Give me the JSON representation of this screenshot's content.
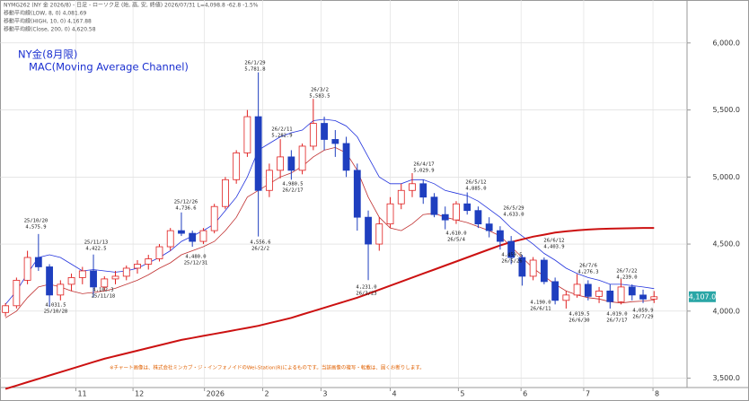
{
  "chart_data": {
    "type": "candlestick",
    "header": [
      "NYMG262 (NY 金 2026/8) - 日足 - ローソク足 (始, 高, 安, 終値)  2026/07/31  L=4,098.8  -62.8  -1.5%",
      "移動平均線(LOW, 8, 0) 4,081.69",
      "移動平均線(HIGH, 10, 0) 4,167.88",
      "移動平均線(Close, 200, 0) 4,620.58"
    ],
    "title": "NY金(8月限)",
    "subtitle": "MAC(Moving Average Channel)",
    "footnote": "※チャート画像は、株式会社ミンカブ・ジ・インフォノイドのWei-Station(R)によるものです。当該画像の複写・転載は、固くお断りします。",
    "ohlc": [
      [
        3990,
        4060,
        3960,
        4040
      ],
      [
        4040,
        4250,
        4020,
        4230
      ],
      [
        4230,
        4450,
        4200,
        4400
      ],
      [
        4400,
        4575,
        4300,
        4330
      ],
      [
        4330,
        4350,
        4031,
        4120
      ],
      [
        4120,
        4230,
        4080,
        4200
      ],
      [
        4200,
        4280,
        4150,
        4250
      ],
      [
        4250,
        4330,
        4200,
        4300
      ],
      [
        4300,
        4422,
        4102,
        4180
      ],
      [
        4180,
        4260,
        4150,
        4240
      ],
      [
        4240,
        4300,
        4200,
        4260
      ],
      [
        4260,
        4340,
        4230,
        4320
      ],
      [
        4320,
        4380,
        4280,
        4350
      ],
      [
        4350,
        4420,
        4310,
        4390
      ],
      [
        4390,
        4500,
        4370,
        4480
      ],
      [
        4480,
        4620,
        4450,
        4600
      ],
      [
        4600,
        4736,
        4560,
        4580
      ],
      [
        4580,
        4600,
        4480,
        4520
      ],
      [
        4520,
        4620,
        4500,
        4600
      ],
      [
        4600,
        4800,
        4580,
        4780
      ],
      [
        4780,
        5000,
        4760,
        4980
      ],
      [
        4980,
        5200,
        4950,
        5180
      ],
      [
        5180,
        5500,
        5150,
        5450
      ],
      [
        5450,
        5781,
        4556,
        4900
      ],
      [
        4900,
        5100,
        4850,
        5050
      ],
      [
        5050,
        5282,
        4990,
        5150
      ],
      [
        5150,
        5200,
        4980,
        5050
      ],
      [
        5050,
        5250,
        5020,
        5230
      ],
      [
        5230,
        5583,
        5200,
        5400
      ],
      [
        5400,
        5450,
        5200,
        5280
      ],
      [
        5280,
        5350,
        5150,
        5250
      ],
      [
        5250,
        5300,
        5000,
        5050
      ],
      [
        5050,
        5100,
        4600,
        4700
      ],
      [
        4700,
        4750,
        4231,
        4500
      ],
      [
        4500,
        4700,
        4450,
        4650
      ],
      [
        4650,
        4850,
        4620,
        4800
      ],
      [
        4800,
        4950,
        4760,
        4900
      ],
      [
        4900,
        5029,
        4850,
        4950
      ],
      [
        4950,
        4980,
        4800,
        4850
      ],
      [
        4850,
        4880,
        4700,
        4720
      ],
      [
        4720,
        4780,
        4610,
        4680
      ],
      [
        4680,
        4820,
        4650,
        4800
      ],
      [
        4800,
        4885,
        4720,
        4750
      ],
      [
        4750,
        4780,
        4620,
        4650
      ],
      [
        4650,
        4700,
        4550,
        4600
      ],
      [
        4600,
        4633,
        4459,
        4520
      ],
      [
        4520,
        4560,
        4350,
        4400
      ],
      [
        4400,
        4420,
        4190,
        4260
      ],
      [
        4260,
        4403,
        4230,
        4380
      ],
      [
        4380,
        4400,
        4200,
        4220
      ],
      [
        4220,
        4250,
        4050,
        4080
      ],
      [
        4080,
        4150,
        4019,
        4120
      ],
      [
        4120,
        4276,
        4100,
        4200
      ],
      [
        4200,
        4230,
        4080,
        4110
      ],
      [
        4110,
        4180,
        4060,
        4150
      ],
      [
        4150,
        4200,
        4019,
        4070
      ],
      [
        4070,
        4239,
        4050,
        4180
      ],
      [
        4180,
        4200,
        4080,
        4120
      ],
      [
        4120,
        4160,
        4060,
        4090
      ],
      [
        4090,
        4150,
        4060,
        4107
      ]
    ],
    "up_color": "#e02020",
    "down_color": "#1f3fbf",
    "series": [
      {
        "color": "#2233dd",
        "width": 0.8,
        "values": [
          4050,
          4150,
          4280,
          4400,
          4420,
          4400,
          4350,
          4300,
          4310,
          4300,
          4290,
          4300,
          4320,
          4360,
          4400,
          4450,
          4520,
          4560,
          4600,
          4650,
          4750,
          4850,
          5000,
          5200,
          5250,
          5300,
          5330,
          5350,
          5420,
          5430,
          5420,
          5380,
          5300,
          5150,
          5000,
          4950,
          4950,
          4980,
          4980,
          4950,
          4900,
          4880,
          4860,
          4820,
          4760,
          4700,
          4620,
          4560,
          4500,
          4430,
          4380,
          4320,
          4280,
          4250,
          4230,
          4200,
          4200,
          4190,
          4180,
          4168
        ]
      },
      {
        "color": "#c03030",
        "width": 0.8,
        "values": [
          3950,
          4000,
          4100,
          4180,
          4200,
          4180,
          4150,
          4130,
          4140,
          4150,
          4170,
          4200,
          4230,
          4270,
          4320,
          4360,
          4420,
          4450,
          4480,
          4520,
          4600,
          4700,
          4850,
          4900,
          4950,
          5000,
          5030,
          5080,
          5150,
          5200,
          5220,
          5180,
          5050,
          4850,
          4700,
          4620,
          4600,
          4650,
          4720,
          4730,
          4700,
          4680,
          4660,
          4630,
          4600,
          4560,
          4480,
          4400,
          4320,
          4260,
          4200,
          4150,
          4120,
          4100,
          4090,
          4070,
          4060,
          4070,
          4075,
          4082
        ]
      },
      {
        "color": "#cc1111",
        "width": 2,
        "values": [
          3420,
          3445,
          3470,
          3495,
          3520,
          3545,
          3570,
          3595,
          3620,
          3645,
          3665,
          3685,
          3705,
          3725,
          3745,
          3765,
          3785,
          3800,
          3815,
          3830,
          3845,
          3860,
          3875,
          3890,
          3910,
          3930,
          3950,
          3975,
          4000,
          4025,
          4050,
          4075,
          4100,
          4130,
          4160,
          4190,
          4220,
          4250,
          4280,
          4310,
          4340,
          4370,
          4400,
          4430,
          4460,
          4490,
          4515,
          4535,
          4555,
          4570,
          4585,
          4595,
          4603,
          4608,
          4612,
          4615,
          4617,
          4618,
          4620,
          4620
        ]
      }
    ],
    "xlim": [
      -0.5,
      62
    ],
    "xticks": [
      {
        "value": 6.4,
        "label": "11"
      },
      {
        "value": 11.6,
        "label": "12"
      },
      {
        "value": 18.1,
        "label": "2026"
      },
      {
        "value": 23.4,
        "label": "2"
      },
      {
        "value": 28.7,
        "label": "3"
      },
      {
        "value": 35.0,
        "label": "4"
      },
      {
        "value": 41.2,
        "label": "5"
      },
      {
        "value": 46.9,
        "label": "6"
      },
      {
        "value": 52.6,
        "label": "7"
      },
      {
        "value": 58.9,
        "label": "8"
      }
    ],
    "ylim": [
      3430,
      6320
    ],
    "yticks": [
      {
        "value": 3500,
        "label": "3,500.0"
      },
      {
        "value": 4000,
        "label": "4,000.0"
      },
      {
        "value": 4500,
        "label": "4,500.0"
      },
      {
        "value": 5000,
        "label": "5,000.0"
      },
      {
        "value": 5500,
        "label": "5,500.0"
      },
      {
        "value": 6000,
        "label": "6,000.0"
      }
    ],
    "grid": true,
    "last_price": {
      "value": 4107,
      "label": "4,107.0"
    },
    "annotations": [
      [
        "25/10/20",
        "4,575.9"
      ],
      [
        "4,031.5",
        "25/10/28"
      ],
      [
        "25/11/13",
        "4,422.5"
      ],
      [
        "4,102.3",
        "25/11/18"
      ],
      [
        "25/12/26",
        "4,736.6"
      ],
      [
        "4,480.0",
        "25/12/31"
      ],
      [
        "26/1/29",
        "5,781.8"
      ],
      [
        "26/2/11",
        "5,282.9"
      ],
      [
        "4,556.6",
        "26/2/2"
      ],
      [
        "26/3/2",
        "5,583.5"
      ],
      [
        "4,980.5",
        "26/2/17"
      ],
      [
        "4,231.0",
        "26/3/23"
      ],
      [
        "26/4/17",
        "5,029.9"
      ],
      [
        "4,610.0",
        "26/5/4"
      ],
      [
        "26/5/12",
        "4,885.0"
      ],
      [
        "26/5/29",
        "4,633.0"
      ],
      [
        "4,459.5",
        "26/5/26"
      ],
      [
        "26/6/12",
        "4,403.9"
      ],
      [
        "4,190.0",
        "26/6/11"
      ],
      [
        "26/7/6",
        "4,276.3"
      ],
      [
        "4,019.5",
        "26/6/30"
      ],
      [
        "4,019.0",
        "26/7/17"
      ],
      [
        "26/7/22",
        "4,239.0"
      ],
      [
        "4,059.9",
        "26/7/29"
      ]
    ]
  }
}
